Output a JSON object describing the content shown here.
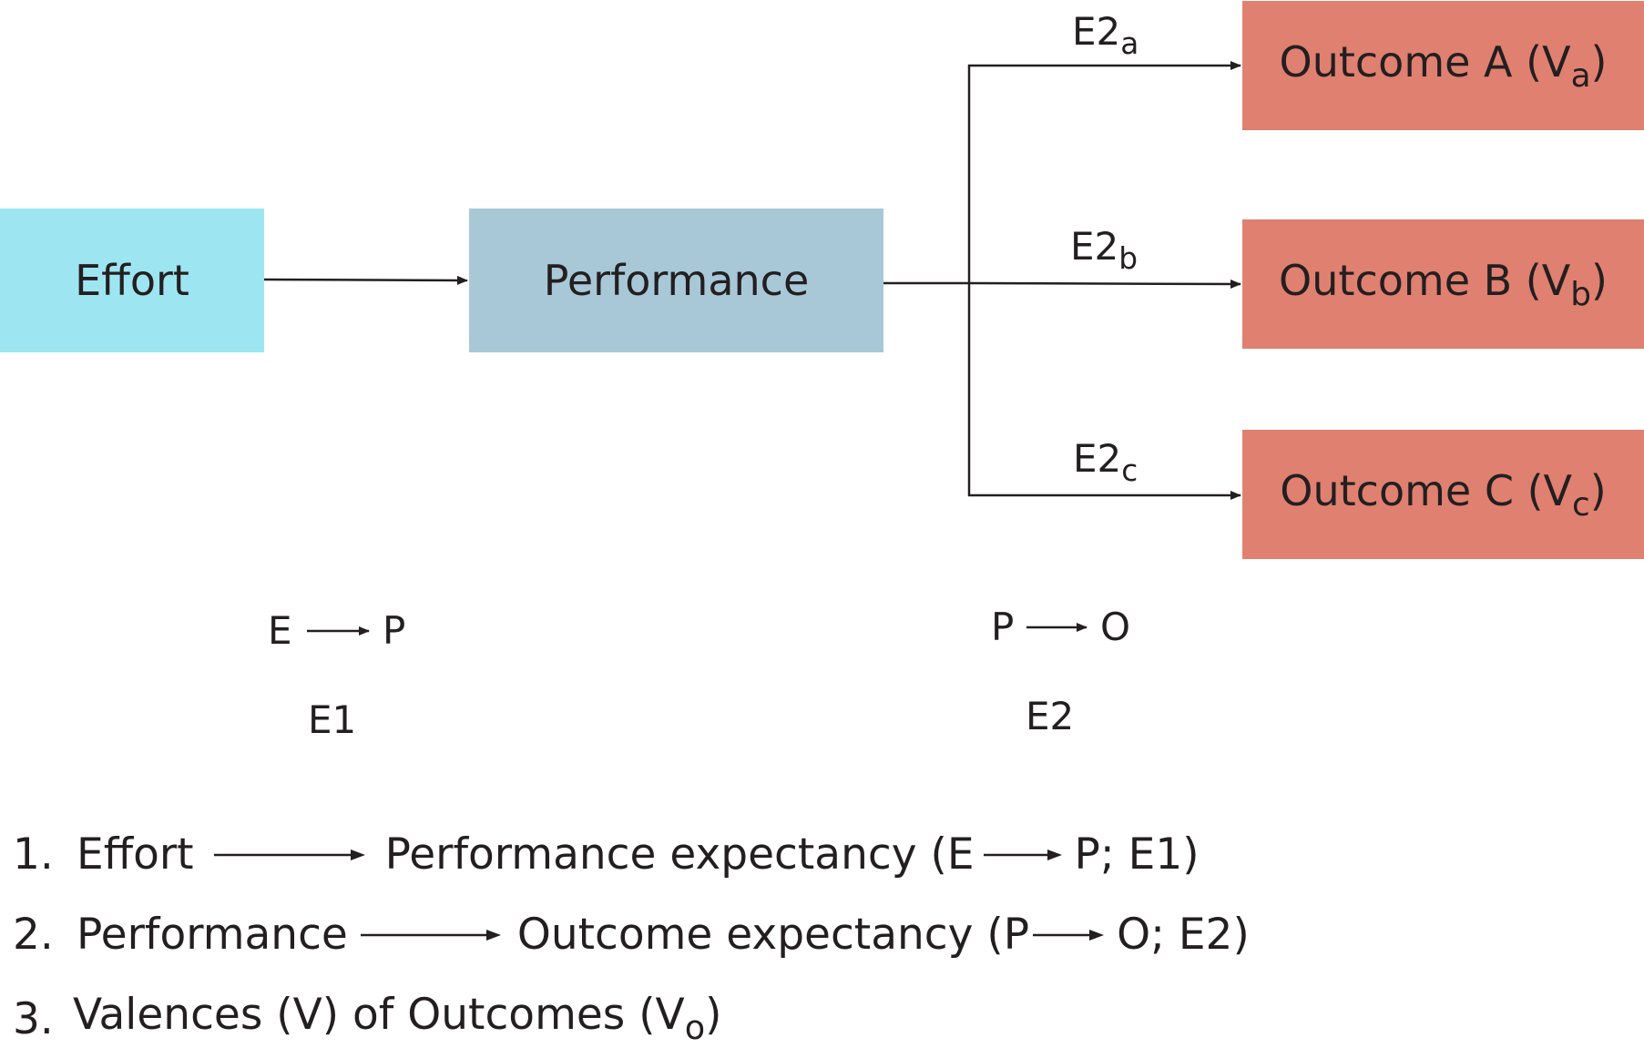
{
  "boxes": {
    "effort": "Effort",
    "performance": "Performance",
    "outcome_a": {
      "text": "Outcome A (V",
      "sub": "a",
      "close": ")"
    },
    "outcome_b": {
      "text": "Outcome B (V",
      "sub": "b",
      "close": ")"
    },
    "outcome_c": {
      "text": "Outcome C (V",
      "sub": "c",
      "close": ")"
    }
  },
  "arrow_labels": {
    "e2a": {
      "base": "E2",
      "sub": "a"
    },
    "e2b": {
      "base": "E2",
      "sub": "b"
    },
    "e2c": {
      "base": "E2",
      "sub": "c"
    }
  },
  "relations": {
    "ep_left": "E",
    "ep_right": "P",
    "e1": "E1",
    "po_left": "P",
    "po_right": "O",
    "e2": "E2"
  },
  "list": [
    {
      "num": "1.",
      "from": "Effort",
      "to": "Performance expectancy (E",
      "tail": "P; E1)"
    },
    {
      "num": "2.",
      "from": "Performance",
      "to": "Outcome expectancy (P",
      "tail": "O; E2)"
    },
    {
      "num": "3.",
      "text": "Valences (V) of Outcomes (V",
      "sub": "o",
      "close": ")"
    }
  ],
  "colors": {
    "effort_box": "#9de6f1",
    "performance_box": "#a8c8d8",
    "outcome_box": "#e08070",
    "line": "#231f20"
  }
}
